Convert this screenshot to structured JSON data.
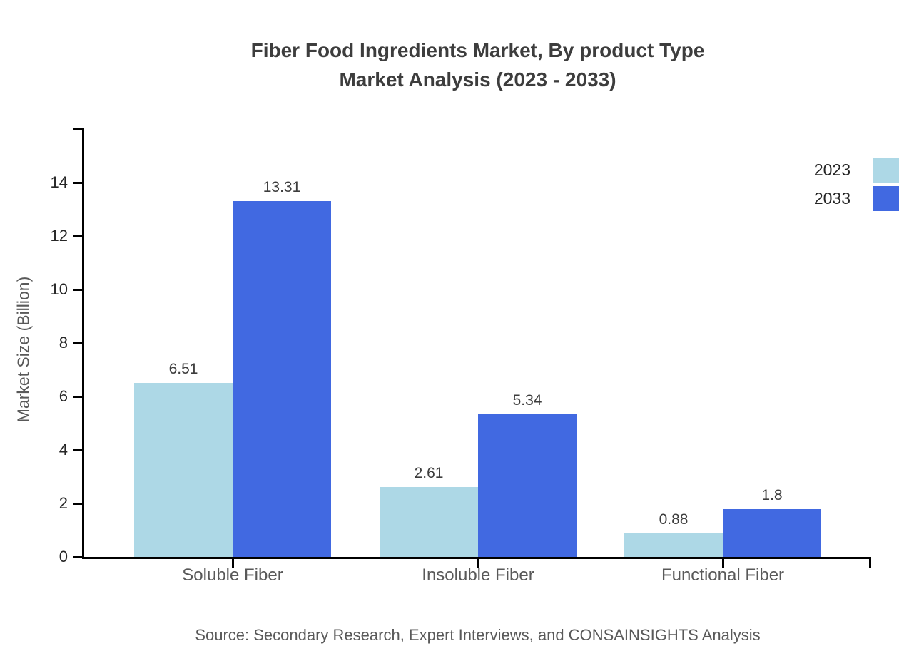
{
  "title": {
    "line1": "Fiber Food Ingredients Market, By product Type",
    "line2": "Market Analysis (2023 - 2033)"
  },
  "source_note": "Source: Secondary Research, Expert Interviews, and CONSAINSIGHTS Analysis",
  "chart_data": {
    "type": "bar",
    "title": "Fiber Food Ingredients Market, By product Type Market Analysis (2023 - 2033)",
    "categories": [
      "Soluble Fiber",
      "Insoluble Fiber",
      "Functional Fiber"
    ],
    "series": [
      {
        "name": "2023",
        "color": "#ADD8E6",
        "values": [
          6.51,
          2.61,
          0.88
        ]
      },
      {
        "name": "2033",
        "color": "#4169E1",
        "values": [
          13.31,
          5.34,
          1.8
        ]
      }
    ],
    "value_labels": [
      [
        "6.51",
        "13.31"
      ],
      [
        "2.61",
        "5.34"
      ],
      [
        "0.88",
        "1.8"
      ]
    ],
    "xlabel": "",
    "ylabel": "Market Size (Billion)",
    "yticks": [
      0,
      2,
      4,
      6,
      8,
      10,
      12,
      14
    ],
    "ylim": [
      0,
      16
    ],
    "grid": false,
    "legend_position": "top-right",
    "axis_color": "#000000"
  }
}
